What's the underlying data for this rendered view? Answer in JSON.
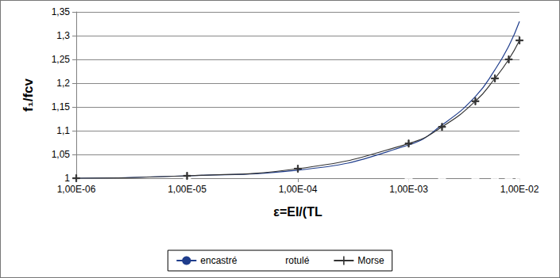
{
  "chart_data": {
    "type": "line",
    "x_label": "ε=EI/(TL",
    "y_label": "f₁/fcv",
    "log": "x",
    "grid": true,
    "legend": "bottom",
    "x": [
      1e-06,
      1e-05,
      0.0001,
      0.001,
      0.002,
      0.004,
      0.006,
      0.008,
      0.01
    ],
    "series": [
      {
        "name": "encastré",
        "type": "line",
        "color": "#1f3d8c",
        "marker": "none",
        "line_style": "solid",
        "values": [
          1.0,
          1.005,
          1.017,
          1.07,
          1.112,
          1.172,
          1.228,
          1.278,
          1.33
        ]
      },
      {
        "name": "rotulé",
        "type": "scatter",
        "color": "#e03020",
        "marker": "square",
        "line_style": "none",
        "values": [
          1.0,
          1.0,
          null,
          1.0,
          1.0,
          1.0,
          1.0,
          1.0,
          1.0
        ]
      },
      {
        "name": "Morse",
        "type": "line",
        "color": "#333333",
        "marker": "plus",
        "line_style": "solid",
        "values": [
          1.0,
          1.005,
          1.02,
          1.073,
          1.108,
          1.162,
          1.21,
          1.25,
          1.29
        ]
      }
    ],
    "xlim": [
      1e-06,
      0.01
    ],
    "xticks": [
      {
        "value": 1e-06,
        "label": "1,00E-06"
      },
      {
        "value": 1e-05,
        "label": "1,00E-05"
      },
      {
        "value": 0.0001,
        "label": "1,00E-04"
      },
      {
        "value": 0.001,
        "label": "1,00E-03"
      },
      {
        "value": 0.01,
        "label": "1,00E-02"
      }
    ],
    "ylim": [
      1,
      1.35
    ],
    "yticks": [
      1,
      {
        "value": 1.05,
        "label": "1,05"
      },
      {
        "value": 1.1,
        "label": "1,1"
      },
      {
        "value": 1.15,
        "label": "1,15"
      },
      {
        "value": 1.2,
        "label": "1,2"
      },
      {
        "value": 1.25,
        "label": "1,25"
      },
      {
        "value": 1.3,
        "label": "1,3"
      },
      {
        "value": 1.35,
        "label": "1,35"
      }
    ]
  }
}
